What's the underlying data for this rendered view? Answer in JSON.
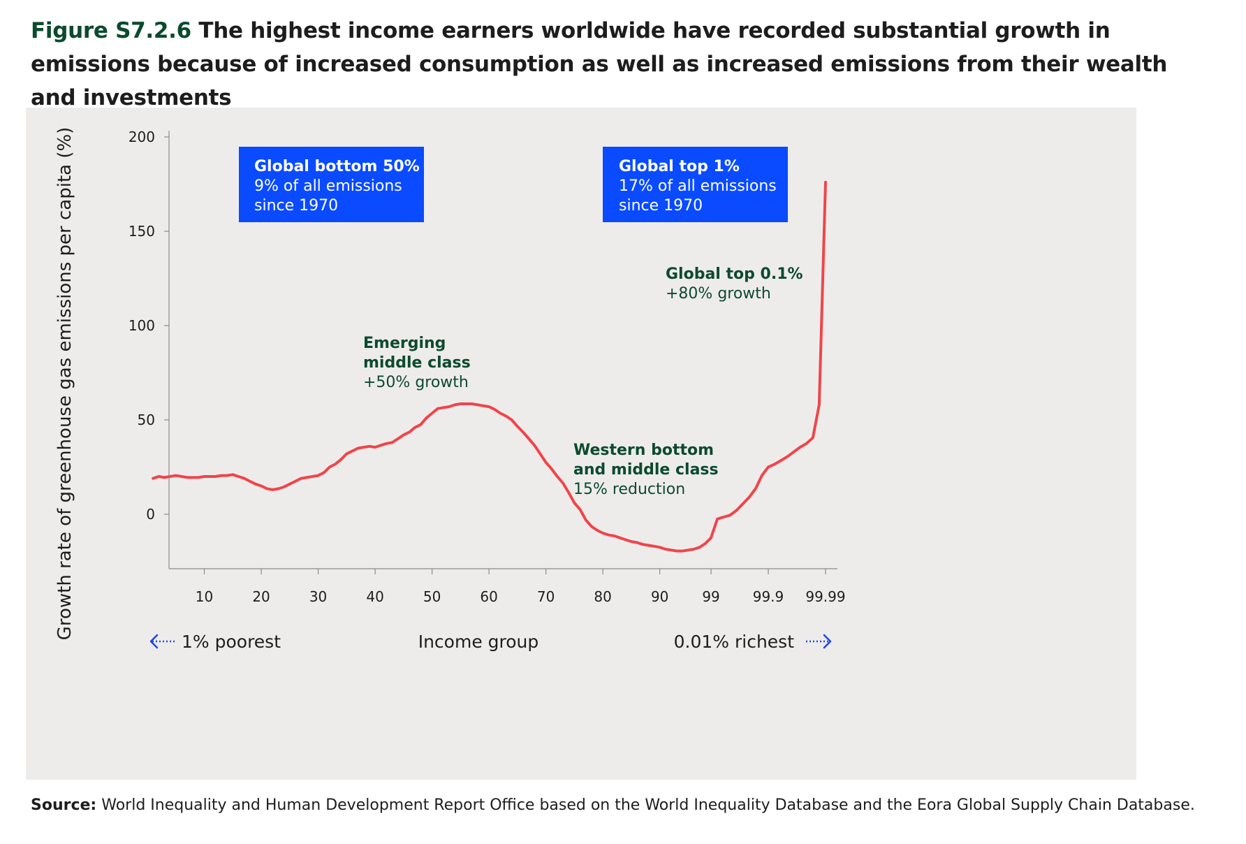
{
  "figure": {
    "label": "Figure S7.2.6",
    "title": "The highest income earners worldwide have recorded substantial growth in emissions because of increased consumption as well as increased emissions from their wealth and investments"
  },
  "source": {
    "label": "Source:",
    "text": "World Inequality and Human Development Report Office based on the World Inequality Database and the Eora Global Supply Chain Database."
  },
  "colors": {
    "panel_background": "#eeeceb",
    "line": "#f0454a",
    "callout_box": "#0a4bff",
    "annotation_text": "#0c4a2e",
    "arrow": "#1a45e8"
  },
  "chart_data": {
    "type": "line",
    "ylabel": "Growth rate of greenhouse gas emissions per capita (%)",
    "xlabel": "Income group",
    "x_tick_labels": [
      "10",
      "20",
      "30",
      "40",
      "50",
      "60",
      "70",
      "80",
      "90",
      "99",
      "99.9",
      "99.99"
    ],
    "y_ticks": [
      0,
      50,
      100,
      150,
      200
    ],
    "ylim": [
      -30,
      200
    ],
    "grid": false,
    "x_note": "Percentile scale: 1–99, then 99.1–99.9, then 99.91–99.99",
    "series": [
      {
        "x": [
          1,
          2,
          3,
          4,
          5,
          6,
          7,
          8,
          9,
          10,
          11,
          12,
          13,
          14,
          15,
          16,
          17,
          18,
          19,
          20,
          21,
          22,
          23,
          24,
          25,
          26,
          27,
          28,
          29,
          30,
          31,
          32,
          33,
          34,
          35,
          36,
          37,
          38,
          39,
          40,
          41,
          42,
          43,
          44,
          45,
          46,
          47,
          48,
          49,
          50,
          51,
          52,
          53,
          54,
          55,
          56,
          57,
          58,
          59,
          60,
          61,
          62,
          63,
          64,
          65,
          66,
          67,
          68,
          69,
          70,
          71,
          72,
          73,
          74,
          75,
          76,
          77,
          78,
          79,
          80,
          81,
          82,
          83,
          84,
          85,
          86,
          87,
          88,
          89,
          90,
          91,
          92,
          93,
          94,
          95,
          96,
          97,
          98,
          99,
          99.1,
          99.2,
          99.3,
          99.4,
          99.5,
          99.6,
          99.7,
          99.8,
          99.9,
          99.91,
          99.92,
          99.93,
          99.94,
          99.95,
          99.96,
          99.97,
          99.98,
          99.99
        ],
        "values": [
          19,
          20,
          19.5,
          20,
          20.5,
          20,
          19.5,
          19.5,
          19.5,
          20,
          20,
          20,
          20.5,
          20.5,
          21,
          20,
          19,
          17.5,
          16,
          15,
          13.5,
          13,
          13.5,
          14.5,
          16,
          17.5,
          19,
          19.5,
          20,
          20.5,
          22,
          25,
          26.5,
          29,
          32,
          33.5,
          35,
          35.5,
          36,
          35.5,
          36.5,
          37.5,
          38,
          40,
          42,
          43.5,
          46,
          47.5,
          51,
          53.5,
          56,
          56.5,
          57,
          58,
          58.5,
          58.5,
          58.5,
          58,
          57.5,
          57,
          55.5,
          53.5,
          52,
          50,
          46.5,
          43.5,
          40,
          36.5,
          32,
          27.5,
          24,
          20,
          16.5,
          11.5,
          6,
          2.5,
          -3,
          -6.5,
          -8.5,
          -10,
          -11,
          -11.5,
          -12.5,
          -13.5,
          -14.5,
          -15,
          -16,
          -16.5,
          -17,
          -17.5,
          -18.5,
          -19,
          -19.5,
          -19.5,
          -19,
          -18.5,
          -17.5,
          -15.5,
          -12.5,
          -2.5,
          -1.5,
          -0.5,
          2,
          5.5,
          9,
          13.5,
          20.5,
          25,
          26.5,
          28.5,
          30.5,
          33,
          35.5,
          37.5,
          40.5,
          58,
          176
        ]
      }
    ],
    "annotations": [
      {
        "title": "Emerging",
        "title2": "middle class",
        "text": "+50% growth"
      },
      {
        "title": "Western bottom",
        "title2": "and middle class",
        "text": "15% reduction"
      },
      {
        "title": "Global top 0.1%",
        "text": "+80% growth"
      }
    ],
    "callouts": [
      {
        "title": "Global bottom 50%",
        "line1": "9% of all emissions",
        "line2": "since 1970"
      },
      {
        "title": "Global top 1%",
        "line1": "17% of all emissions",
        "line2": "since 1970"
      }
    ],
    "axis_footer": {
      "left_label": "1% poorest",
      "center_label": "Income group",
      "right_label": "0.01% richest"
    }
  }
}
